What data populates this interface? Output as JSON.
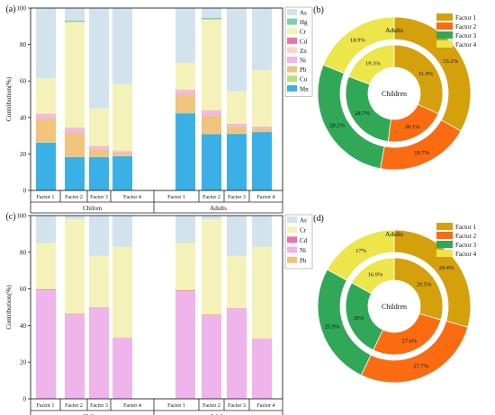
{
  "figure": {
    "colors": {
      "As": "#d3e3ee",
      "Hg": "#7ed0a6",
      "Cr": "#f4f2b8",
      "Cd": "#f070a8",
      "Zn": "#f8d8c8",
      "Ni": "#f0b4ec",
      "Pb": "#f0c47c",
      "Cu": "#b8e078",
      "Mn": "#3ab0e6",
      "F1": "#d4a00c",
      "F2": "#fa6b12",
      "F3": "#30a858",
      "F4": "#ece64a"
    },
    "panels": [
      {
        "label": "(a)",
        "ylabel": "Contribution(%)",
        "yticks": [
          0,
          20,
          40,
          60,
          80,
          100
        ],
        "ylim": [
          0,
          100
        ],
        "groups": [
          "Chilren",
          "Adults"
        ],
        "categories": [
          "Factor 1",
          "Factor 2",
          "Factor 3",
          "Factor 4"
        ],
        "legend": [
          "As",
          "Hg",
          "Cr",
          "Cd",
          "Zn",
          "Ni",
          "Pb",
          "Cu",
          "Mn"
        ],
        "chart_order": [
          "Mn",
          "Cu",
          "Pb",
          "Ni",
          "Zn",
          "Cd",
          "Cr",
          "Hg",
          "As"
        ],
        "bars": [
          {
            "Mn": 26.2,
            "Cu": 0.3,
            "Pb": 13.0,
            "Ni": 1.8,
            "Zn": 0.4,
            "Cd": 0.3,
            "Cr": 19.5,
            "Hg": 0.0,
            "As": 38.5
          },
          {
            "Mn": 18.3,
            "Cu": 0.2,
            "Pb": 13.0,
            "Ni": 2.0,
            "Zn": 0.4,
            "Cd": 0.3,
            "Cr": 58.2,
            "Hg": 0.8,
            "As": 6.8
          },
          {
            "Mn": 18.3,
            "Cu": 0.2,
            "Pb": 4.0,
            "Ni": 1.0,
            "Zn": 0.4,
            "Cd": 0.3,
            "Cr": 20.8,
            "Hg": 0.0,
            "As": 55.0
          },
          {
            "Mn": 18.8,
            "Cu": 0.2,
            "Pb": 1.5,
            "Ni": 0.8,
            "Zn": 0.3,
            "Cd": 0.2,
            "Cr": 36.5,
            "Hg": 0.0,
            "As": 41.7
          },
          {
            "Mn": 42.3,
            "Cu": 0.3,
            "Pb": 10.0,
            "Ni": 1.8,
            "Zn": 0.3,
            "Cd": 0.3,
            "Cr": 15.0,
            "Hg": 0.0,
            "As": 30.0
          },
          {
            "Mn": 30.8,
            "Cu": 0.2,
            "Pb": 10.0,
            "Ni": 2.0,
            "Zn": 0.3,
            "Cd": 0.3,
            "Cr": 50.2,
            "Hg": 0.8,
            "As": 5.4
          },
          {
            "Mn": 31.0,
            "Cu": 0.2,
            "Pb": 3.5,
            "Ni": 1.0,
            "Zn": 0.3,
            "Cd": 0.3,
            "Cr": 18.0,
            "Hg": 0.0,
            "As": 45.7
          },
          {
            "Mn": 32.0,
            "Cu": 0.2,
            "Pb": 1.5,
            "Ni": 0.8,
            "Zn": 0.3,
            "Cd": 0.2,
            "Cr": 31.0,
            "Hg": 0.0,
            "As": 34.0
          }
        ]
      },
      {
        "label": "(c)",
        "ylabel": "Contribution(%)",
        "yticks": [
          0,
          20,
          40,
          60,
          80,
          100
        ],
        "ylim": [
          0,
          100
        ],
        "groups": [
          "Chilren",
          "Adults"
        ],
        "categories": [
          "Factor 1",
          "Factor 2",
          "Factor 3",
          "Factor 4"
        ],
        "legend": [
          "As",
          "Cr",
          "Cd",
          "Ni",
          "Pb"
        ],
        "chart_order": [
          "Ni",
          "Pb",
          "Cd",
          "Cr",
          "As"
        ],
        "bars": [
          {
            "Ni": 59.3,
            "Pb": 0.2,
            "Cd": 0.3,
            "Cr": 25.2,
            "As": 15.0
          },
          {
            "Ni": 45.8,
            "Pb": 0.3,
            "Cd": 0.3,
            "Cr": 51.6,
            "As": 2.0
          },
          {
            "Ni": 49.8,
            "Pb": 0.1,
            "Cd": 0.1,
            "Cr": 28.0,
            "As": 22.0
          },
          {
            "Ni": 33.3,
            "Pb": 0.1,
            "Cd": 0.1,
            "Cr": 49.5,
            "As": 17.0
          },
          {
            "Ni": 58.8,
            "Pb": 0.2,
            "Cd": 0.3,
            "Cr": 25.7,
            "As": 15.0
          },
          {
            "Ni": 45.3,
            "Pb": 0.3,
            "Cd": 0.3,
            "Cr": 52.1,
            "As": 2.0
          },
          {
            "Ni": 49.3,
            "Pb": 0.1,
            "Cd": 0.1,
            "Cr": 28.5,
            "As": 22.0
          },
          {
            "Ni": 32.8,
            "Pb": 0.1,
            "Cd": 0.1,
            "Cr": 50.0,
            "As": 17.0
          }
        ]
      }
    ],
    "donuts": [
      {
        "label": "(b)",
        "outer_title": "Adults",
        "center_text": "Children",
        "legend": [
          "Factor 1",
          "Factor 2",
          "Factor 3",
          "Factor 4"
        ],
        "outer": [
          33.2,
          19.7,
          28.2,
          18.9
        ],
        "outer_labels": [
          "33.2%",
          "19.7%",
          "28.2%",
          "18.9%"
        ],
        "inner": [
          31.9,
          20.1,
          28.7,
          19.3
        ],
        "inner_labels": [
          "31.9%",
          "20.1%",
          "28.7%",
          "19.3%"
        ]
      },
      {
        "label": "(d)",
        "outer_title": "Adults",
        "center_text": "Children",
        "legend": [
          "Factor 1",
          "Factor 2",
          "Factor 3",
          "Factor 4"
        ],
        "outer": [
          29.4,
          27.7,
          25.9,
          17.0
        ],
        "outer_labels": [
          "29.4%",
          "27.7%",
          "25.9%",
          "17%"
        ],
        "inner": [
          29.5,
          27.6,
          26.0,
          16.9
        ],
        "inner_labels": [
          "29.5%",
          "27.6%",
          "26%",
          "16.9%"
        ]
      }
    ]
  },
  "chart_data": [
    {
      "type": "bar",
      "title": "(a)",
      "ylabel": "Contribution(%)",
      "ylim": [
        0,
        100
      ],
      "groups": [
        "Chilren",
        "Adults"
      ],
      "categories": [
        "Factor 1",
        "Factor 2",
        "Factor 3",
        "Factor 4",
        "Factor 1",
        "Factor 2",
        "Factor 3",
        "Factor 4"
      ],
      "stacked": true,
      "series": [
        {
          "name": "Mn",
          "values": [
            26.2,
            18.3,
            18.3,
            18.8,
            42.3,
            30.8,
            31.0,
            32.0
          ]
        },
        {
          "name": "Cu",
          "values": [
            0.3,
            0.2,
            0.2,
            0.2,
            0.3,
            0.2,
            0.2,
            0.2
          ]
        },
        {
          "name": "Pb",
          "values": [
            13.0,
            13.0,
            4.0,
            1.5,
            10.0,
            10.0,
            3.5,
            1.5
          ]
        },
        {
          "name": "Ni",
          "values": [
            1.8,
            2.0,
            1.0,
            0.8,
            1.8,
            2.0,
            1.0,
            0.8
          ]
        },
        {
          "name": "Zn",
          "values": [
            0.4,
            0.4,
            0.4,
            0.3,
            0.3,
            0.3,
            0.3,
            0.3
          ]
        },
        {
          "name": "Cd",
          "values": [
            0.3,
            0.3,
            0.3,
            0.2,
            0.3,
            0.3,
            0.3,
            0.2
          ]
        },
        {
          "name": "Cr",
          "values": [
            19.5,
            58.2,
            20.8,
            36.5,
            15.0,
            50.2,
            18.0,
            31.0
          ]
        },
        {
          "name": "Hg",
          "values": [
            0.0,
            0.8,
            0.0,
            0.0,
            0.0,
            0.8,
            0.0,
            0.0
          ]
        },
        {
          "name": "As",
          "values": [
            38.5,
            6.8,
            55.0,
            41.7,
            30.0,
            5.4,
            45.7,
            34.0
          ]
        }
      ],
      "legend": "right"
    },
    {
      "type": "pie",
      "title": "(b)",
      "labels": [
        "Factor 1",
        "Factor 2",
        "Factor 3",
        "Factor 4"
      ],
      "rings": [
        {
          "name": "Adults",
          "values": [
            33.2,
            19.7,
            28.2,
            18.9
          ]
        },
        {
          "name": "Children",
          "values": [
            31.9,
            20.1,
            28.7,
            19.3
          ]
        }
      ],
      "legend": "top-right"
    },
    {
      "type": "bar",
      "title": "(c)",
      "ylabel": "Contribution(%)",
      "ylim": [
        0,
        100
      ],
      "groups": [
        "Chilren",
        "Adults"
      ],
      "categories": [
        "Factor 1",
        "Factor 2",
        "Factor 3",
        "Factor 4",
        "Factor 1",
        "Factor 2",
        "Factor 3",
        "Factor 4"
      ],
      "stacked": true,
      "series": [
        {
          "name": "Ni",
          "values": [
            59.3,
            45.8,
            49.8,
            33.3,
            58.8,
            45.3,
            49.3,
            32.8
          ]
        },
        {
          "name": "Pb",
          "values": [
            0.2,
            0.3,
            0.1,
            0.1,
            0.2,
            0.3,
            0.1,
            0.1
          ]
        },
        {
          "name": "Cd",
          "values": [
            0.3,
            0.3,
            0.1,
            0.1,
            0.3,
            0.3,
            0.1,
            0.1
          ]
        },
        {
          "name": "Cr",
          "values": [
            25.2,
            51.6,
            28.0,
            49.5,
            25.7,
            52.1,
            28.5,
            50.0
          ]
        },
        {
          "name": "As",
          "values": [
            15.0,
            2.0,
            22.0,
            17.0,
            15.0,
            2.0,
            22.0,
            17.0
          ]
        }
      ],
      "legend": "right"
    },
    {
      "type": "pie",
      "title": "(d)",
      "labels": [
        "Factor 1",
        "Factor 2",
        "Factor 3",
        "Factor 4"
      ],
      "rings": [
        {
          "name": "Adults",
          "values": [
            29.4,
            27.7,
            25.9,
            17.0
          ]
        },
        {
          "name": "Children",
          "values": [
            29.5,
            27.6,
            26.0,
            16.9
          ]
        }
      ],
      "legend": "top-right"
    }
  ]
}
